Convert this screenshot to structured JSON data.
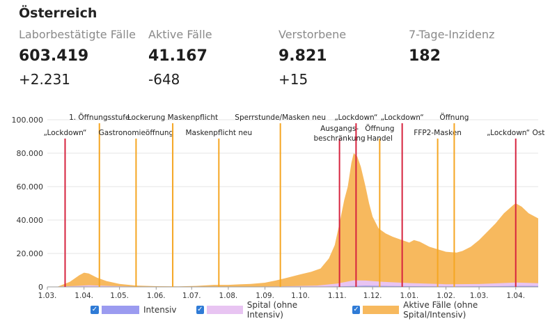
{
  "header": {
    "title": "Österreich",
    "stats": [
      {
        "label": "Laborbestätigte Fälle",
        "value": "603.419",
        "delta": "+2.231"
      },
      {
        "label": "Aktive Fälle",
        "value": "41.167",
        "delta": "-648"
      },
      {
        "label": "Verstorbene",
        "value": "9.821",
        "delta": "+15"
      },
      {
        "label": "7-Tage-Inzidenz",
        "value": "182",
        "delta": ""
      }
    ]
  },
  "legend": [
    {
      "label": "Intensiv",
      "color": "#9b9bf0",
      "checked": true
    },
    {
      "label": "Spital (ohne Intensiv)",
      "color": "#e8c4f2",
      "checked": true
    },
    {
      "label": "Aktive Fälle (ohne Spital/Intensiv)",
      "color": "#f7b95e",
      "checked": true
    }
  ],
  "chart_data": {
    "type": "area",
    "title": "",
    "xlabel": "",
    "ylabel": "",
    "x_range": [
      "2020-03-01",
      "2021-04-20"
    ],
    "ylim": [
      0,
      100000
    ],
    "y_ticks": [
      "0",
      "20.000",
      "40.000",
      "60.000",
      "80.000",
      "100.000"
    ],
    "x_ticks": [
      {
        "date": "2020-03-01",
        "label": "1.03."
      },
      {
        "date": "2020-04-01",
        "label": "1.04."
      },
      {
        "date": "2020-05-01",
        "label": "1.05."
      },
      {
        "date": "2020-06-01",
        "label": "1.06."
      },
      {
        "date": "2020-07-01",
        "label": "1.07."
      },
      {
        "date": "2020-08-01",
        "label": "1.08."
      },
      {
        "date": "2020-09-01",
        "label": "1.09."
      },
      {
        "date": "2020-10-01",
        "label": "1.10."
      },
      {
        "date": "2020-11-01",
        "label": "1.11."
      },
      {
        "date": "2020-12-01",
        "label": "1.12."
      },
      {
        "date": "2021-01-01",
        "label": "1.01."
      },
      {
        "date": "2021-02-01",
        "label": "1.02."
      },
      {
        "date": "2021-03-01",
        "label": "1.03."
      },
      {
        "date": "2021-04-01",
        "label": "1.04."
      }
    ],
    "grid": true,
    "series": [
      {
        "name": "Aktive Fälle (ohne Spital/Intensiv)",
        "color": "#f7b95e",
        "points": [
          [
            "2020-03-01",
            0
          ],
          [
            "2020-03-10",
            200
          ],
          [
            "2020-03-20",
            3000
          ],
          [
            "2020-03-28",
            7000
          ],
          [
            "2020-04-01",
            8500
          ],
          [
            "2020-04-05",
            8000
          ],
          [
            "2020-04-12",
            5500
          ],
          [
            "2020-04-20",
            3500
          ],
          [
            "2020-05-01",
            1800
          ],
          [
            "2020-05-15",
            800
          ],
          [
            "2020-06-01",
            400
          ],
          [
            "2020-06-20",
            300
          ],
          [
            "2020-07-05",
            600
          ],
          [
            "2020-07-20",
            1200
          ],
          [
            "2020-08-01",
            1200
          ],
          [
            "2020-08-10",
            1500
          ],
          [
            "2020-08-20",
            1800
          ],
          [
            "2020-09-01",
            2500
          ],
          [
            "2020-09-10",
            3800
          ],
          [
            "2020-09-20",
            5500
          ],
          [
            "2020-10-01",
            7500
          ],
          [
            "2020-10-10",
            9000
          ],
          [
            "2020-10-18",
            11000
          ],
          [
            "2020-10-25",
            17000
          ],
          [
            "2020-10-30",
            25000
          ],
          [
            "2020-11-03",
            38000
          ],
          [
            "2020-11-07",
            52000
          ],
          [
            "2020-11-10",
            60000
          ],
          [
            "2020-11-13",
            74000
          ],
          [
            "2020-11-15",
            80000
          ],
          [
            "2020-11-18",
            78000
          ],
          [
            "2020-11-21",
            72000
          ],
          [
            "2020-11-25",
            60000
          ],
          [
            "2020-11-28",
            50000
          ],
          [
            "2020-12-01",
            42000
          ],
          [
            "2020-12-06",
            35000
          ],
          [
            "2020-12-12",
            32000
          ],
          [
            "2020-12-18",
            30000
          ],
          [
            "2020-12-24",
            28500
          ],
          [
            "2021-01-01",
            26500
          ],
          [
            "2021-01-05",
            28000
          ],
          [
            "2021-01-10",
            27000
          ],
          [
            "2021-01-18",
            24000
          ],
          [
            "2021-01-25",
            22500
          ],
          [
            "2021-02-01",
            21000
          ],
          [
            "2021-02-10",
            20500
          ],
          [
            "2021-02-15",
            21500
          ],
          [
            "2021-02-22",
            24000
          ],
          [
            "2021-03-01",
            28000
          ],
          [
            "2021-03-08",
            33000
          ],
          [
            "2021-03-15",
            38000
          ],
          [
            "2021-03-22",
            44000
          ],
          [
            "2021-03-30",
            49000
          ],
          [
            "2021-04-01",
            50000
          ],
          [
            "2021-04-06",
            48000
          ],
          [
            "2021-04-12",
            44000
          ],
          [
            "2021-04-20",
            41000
          ]
        ]
      },
      {
        "name": "Spital (ohne Intensiv)",
        "color": "#e8c4f2",
        "points": [
          [
            "2020-03-01",
            0
          ],
          [
            "2020-03-25",
            600
          ],
          [
            "2020-04-05",
            1000
          ],
          [
            "2020-04-25",
            500
          ],
          [
            "2020-05-15",
            150
          ],
          [
            "2020-07-01",
            100
          ],
          [
            "2020-08-15",
            150
          ],
          [
            "2020-09-15",
            300
          ],
          [
            "2020-10-15",
            800
          ],
          [
            "2020-11-01",
            2000
          ],
          [
            "2020-11-15",
            3900
          ],
          [
            "2020-11-25",
            3800
          ],
          [
            "2020-12-10",
            3000
          ],
          [
            "2021-01-01",
            2300
          ],
          [
            "2021-02-01",
            1600
          ],
          [
            "2021-03-01",
            1700
          ],
          [
            "2021-04-01",
            2600
          ],
          [
            "2021-04-20",
            2200
          ]
        ]
      },
      {
        "name": "Intensiv",
        "color": "#9b9bf0",
        "points": [
          [
            "2020-03-01",
            0
          ],
          [
            "2020-04-01",
            250
          ],
          [
            "2020-05-01",
            100
          ],
          [
            "2020-07-01",
            20
          ],
          [
            "2020-09-01",
            50
          ],
          [
            "2020-10-15",
            150
          ],
          [
            "2020-11-01",
            300
          ],
          [
            "2020-11-25",
            700
          ],
          [
            "2020-12-15",
            550
          ],
          [
            "2021-01-15",
            380
          ],
          [
            "2021-02-15",
            280
          ],
          [
            "2021-03-15",
            400
          ],
          [
            "2021-04-05",
            600
          ],
          [
            "2021-04-20",
            550
          ]
        ]
      }
    ],
    "events": [
      {
        "date": "2020-03-16",
        "lines": [
          "„Lockdown“"
        ],
        "color": "#d6243f",
        "row": 1
      },
      {
        "date": "2020-04-14",
        "lines": [
          "1. Öffnungsstufe"
        ],
        "color": "#f5a623",
        "row": 0
      },
      {
        "date": "2020-05-15",
        "lines": [
          "Gastronomieöffnung"
        ],
        "color": "#f5a623",
        "row": 1
      },
      {
        "date": "2020-06-15",
        "lines": [
          "Lockerung Maskenpflicht"
        ],
        "color": "#f5a623",
        "row": 0
      },
      {
        "date": "2020-07-24",
        "lines": [
          "Maskenpflicht neu"
        ],
        "color": "#f5a623",
        "row": 1
      },
      {
        "date": "2020-09-14",
        "lines": [
          "Sperrstunde/Masken neu"
        ],
        "color": "#f5a623",
        "row": 0
      },
      {
        "date": "2020-11-03",
        "lines": [
          "Ausgangs-",
          "beschränkung"
        ],
        "color": "#d6243f",
        "row": 1
      },
      {
        "date": "2020-11-17",
        "lines": [
          "„Lockdown“"
        ],
        "color": "#d6243f",
        "row": 0
      },
      {
        "date": "2020-12-07",
        "lines": [
          "Öffnung",
          "Handel"
        ],
        "color": "#f5a623",
        "row": 1
      },
      {
        "date": "2020-12-26",
        "lines": [
          "„Lockdown“"
        ],
        "color": "#d6243f",
        "row": 0
      },
      {
        "date": "2021-01-25",
        "lines": [
          "FFP2-Masken"
        ],
        "color": "#f5a623",
        "row": 1
      },
      {
        "date": "2021-02-08",
        "lines": [
          "Öffnung"
        ],
        "color": "#f5a623",
        "row": 0
      },
      {
        "date": "2021-04-01",
        "lines": [
          "„Lockdown“ Ost"
        ],
        "color": "#d6243f",
        "row": 1
      }
    ]
  }
}
